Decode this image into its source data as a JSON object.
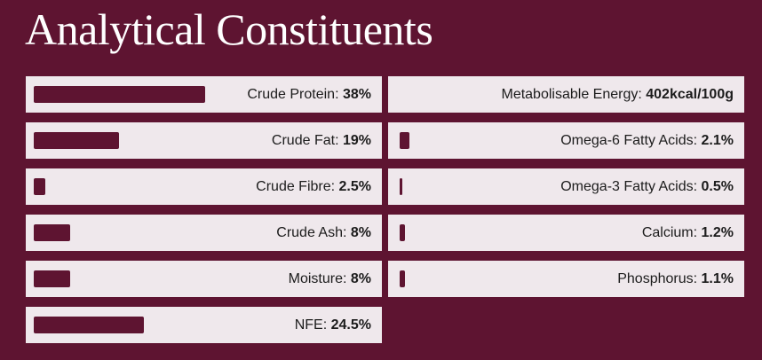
{
  "title": "Analytical Constituents",
  "left": [
    {
      "label": "Crude Protein:",
      "value": 38,
      "value_label": "38%"
    },
    {
      "label": "Crude Fat:",
      "value": 19,
      "value_label": "19%"
    },
    {
      "label": "Crude Fibre:",
      "value": 2.5,
      "value_label": "2.5%"
    },
    {
      "label": "Crude Ash:",
      "value": 8,
      "value_label": "8%"
    },
    {
      "label": "Moisture:",
      "value": 8,
      "value_label": "8%"
    },
    {
      "label": "NFE:",
      "value": 24.5,
      "value_label": "24.5%"
    }
  ],
  "right": [
    {
      "label": "Metabolisable Energy:",
      "value_label": "402kcal/100g"
    },
    {
      "label": "Omega-6 Fatty Acids:",
      "value": 2.1,
      "value_label": "2.1%"
    },
    {
      "label": "Omega-3 Fatty Acids:",
      "value": 0.5,
      "value_label": "0.5%"
    },
    {
      "label": "Calcium:",
      "value": 1.2,
      "value_label": "1.2%"
    },
    {
      "label": "Phosphorus:",
      "value": 1.1,
      "value_label": "1.1%"
    }
  ]
}
